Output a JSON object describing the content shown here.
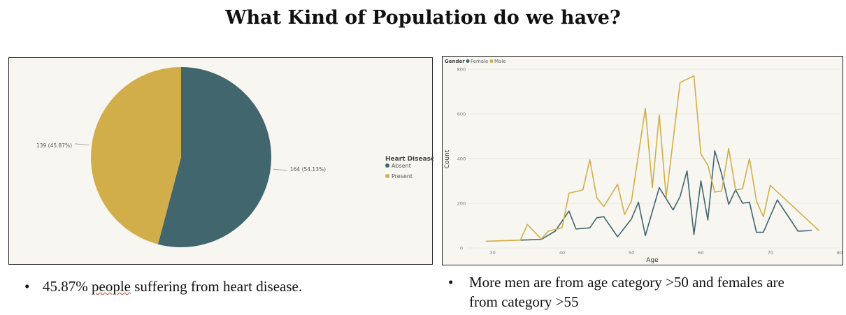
{
  "title": "What Kind of Population do we have?",
  "colors": {
    "absent": "#41666e",
    "present": "#d2ae4a",
    "female": "#41666e",
    "male": "#d2ae4a"
  },
  "chart_data": [
    {
      "type": "pie",
      "legend_title": "Heart Disease",
      "slices": [
        {
          "name": "Absent",
          "value": 164,
          "label": "164 (54.13%)"
        },
        {
          "name": "Present",
          "value": 139,
          "label": "139 (45.87%)"
        }
      ],
      "legend_position": "right"
    },
    {
      "type": "line",
      "legend_title": "Gender",
      "legend_position": "top-left",
      "xlabel": "Age",
      "ylabel": "Count",
      "xlim": [
        25,
        80
      ],
      "ylim": [
        0,
        800
      ],
      "xticks": [
        30,
        40,
        50,
        60,
        70,
        80
      ],
      "yticks": [
        0,
        200,
        400,
        600,
        800
      ],
      "series": [
        {
          "name": "Female",
          "points": [
            [
              34,
              35
            ],
            [
              37,
              38
            ],
            [
              39,
              75
            ],
            [
              41,
              165
            ],
            [
              42,
              85
            ],
            [
              44,
              90
            ],
            [
              45,
              135
            ],
            [
              46,
              140
            ],
            [
              48,
              50
            ],
            [
              50,
              130
            ],
            [
              51,
              205
            ],
            [
              52,
              55
            ],
            [
              54,
              270
            ],
            [
              56,
              170
            ],
            [
              57,
              230
            ],
            [
              58,
              345
            ],
            [
              59,
              60
            ],
            [
              60,
              300
            ],
            [
              61,
              125
            ],
            [
              62,
              435
            ],
            [
              63,
              330
            ],
            [
              64,
              195
            ],
            [
              65,
              260
            ],
            [
              66,
              200
            ],
            [
              67,
              205
            ],
            [
              68,
              70
            ],
            [
              69,
              70
            ],
            [
              71,
              215
            ],
            [
              74,
              75
            ],
            [
              76,
              78
            ]
          ]
        },
        {
          "name": "Male",
          "points": [
            [
              29,
              30
            ],
            [
              34,
              35
            ],
            [
              35,
              105
            ],
            [
              37,
              40
            ],
            [
              38,
              75
            ],
            [
              40,
              90
            ],
            [
              41,
              245
            ],
            [
              43,
              260
            ],
            [
              44,
              395
            ],
            [
              45,
              225
            ],
            [
              46,
              185
            ],
            [
              48,
              285
            ],
            [
              49,
              150
            ],
            [
              50,
              210
            ],
            [
              52,
              625
            ],
            [
              53,
              270
            ],
            [
              54,
              595
            ],
            [
              55,
              225
            ],
            [
              57,
              740
            ],
            [
              59,
              770
            ],
            [
              60,
              420
            ],
            [
              61,
              370
            ],
            [
              62,
              250
            ],
            [
              63,
              255
            ],
            [
              64,
              445
            ],
            [
              65,
              260
            ],
            [
              66,
              265
            ],
            [
              67,
              400
            ],
            [
              68,
              210
            ],
            [
              69,
              140
            ],
            [
              70,
              280
            ],
            [
              77,
              78
            ]
          ]
        }
      ]
    }
  ],
  "bullets": {
    "left": "45.87% people suffering from heart disease.",
    "right": "More men are from age category >50 and females are from category >55"
  },
  "bullet_symbol": "•"
}
